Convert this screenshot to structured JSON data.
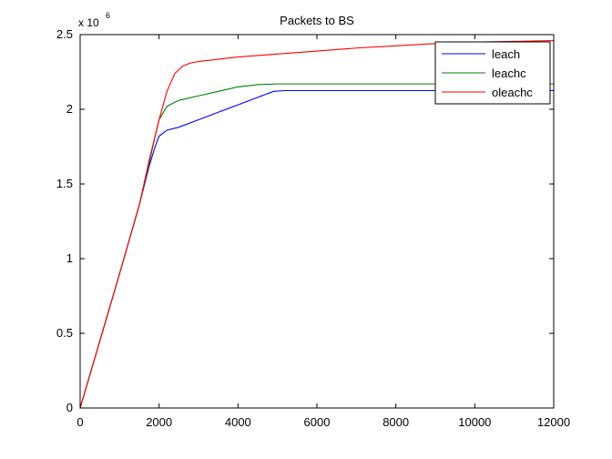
{
  "chart_data": {
    "type": "line",
    "title": "Packets to BS",
    "xlabel": "",
    "ylabel": "",
    "y_multiplier_base": "x 10",
    "y_multiplier_exp": "6",
    "xlim": [
      0,
      12000
    ],
    "ylim": [
      0,
      2.5
    ],
    "x_ticks": [
      0,
      2000,
      4000,
      6000,
      8000,
      10000,
      12000
    ],
    "x_tick_labels": [
      "0",
      "2000",
      "4000",
      "6000",
      "8000",
      "10000",
      "12000"
    ],
    "y_ticks": [
      0,
      0.5,
      1,
      1.5,
      2,
      2.5
    ],
    "y_tick_labels": [
      "0",
      "0.5",
      "1",
      "1.5",
      "2",
      "2.5"
    ],
    "grid": false,
    "legend_position": "top-right",
    "series": [
      {
        "name": "leach",
        "color": "#0000ff",
        "x": [
          0,
          500,
          1000,
          1500,
          1750,
          1900,
          2000,
          2200,
          2500,
          3000,
          3500,
          4000,
          4500,
          4900,
          5200,
          6000,
          7000,
          8000,
          9000,
          10000,
          11000,
          12000
        ],
        "y": [
          0,
          0.45,
          0.9,
          1.36,
          1.62,
          1.75,
          1.82,
          1.86,
          1.88,
          1.93,
          1.98,
          2.03,
          2.08,
          2.12,
          2.125,
          2.125,
          2.125,
          2.125,
          2.125,
          2.125,
          2.125,
          2.125
        ]
      },
      {
        "name": "leachc",
        "color": "#008000",
        "x": [
          0,
          500,
          1000,
          1500,
          1750,
          1900,
          2000,
          2200,
          2500,
          3000,
          3500,
          4000,
          4500,
          5000,
          6000,
          7000,
          8000,
          9000,
          10000,
          11000,
          12000
        ],
        "y": [
          0,
          0.45,
          0.9,
          1.36,
          1.64,
          1.82,
          1.93,
          2.02,
          2.06,
          2.09,
          2.12,
          2.15,
          2.165,
          2.17,
          2.17,
          2.17,
          2.17,
          2.17,
          2.17,
          2.17,
          2.17
        ]
      },
      {
        "name": "oleachc",
        "color": "#ff0000",
        "x": [
          0,
          500,
          1000,
          1500,
          1750,
          2000,
          2200,
          2400,
          2600,
          2800,
          3000,
          3500,
          4000,
          5000,
          6000,
          7000,
          8000,
          9000,
          10000,
          11000,
          12000
        ],
        "y": [
          0,
          0.45,
          0.9,
          1.36,
          1.66,
          1.93,
          2.12,
          2.24,
          2.29,
          2.31,
          2.32,
          2.335,
          2.35,
          2.37,
          2.39,
          2.41,
          2.425,
          2.44,
          2.45,
          2.455,
          2.46
        ]
      }
    ]
  }
}
